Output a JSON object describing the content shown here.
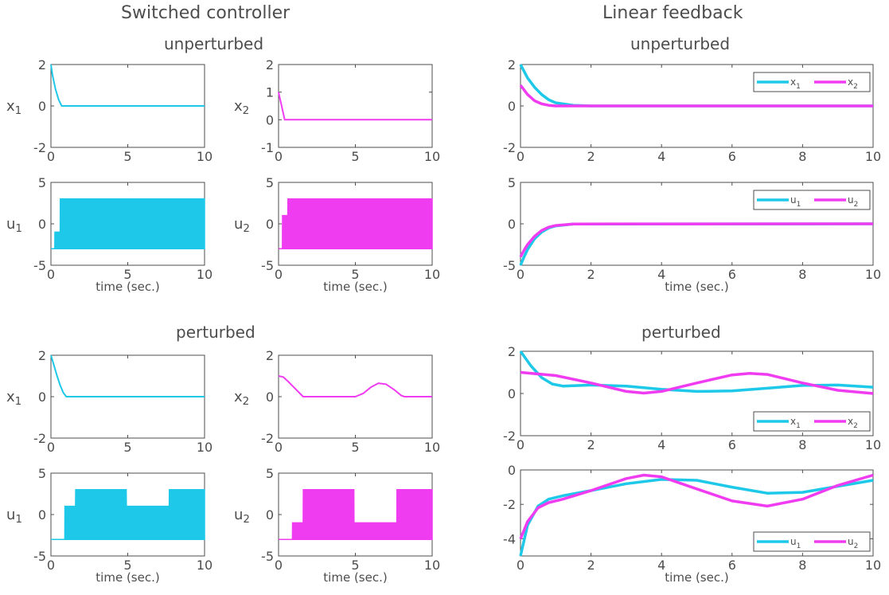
{
  "columns": {
    "left": "Switched controller",
    "right": "Linear feedback"
  },
  "rows": {
    "top": "unperturbed",
    "bottom": "perturbed"
  },
  "xlabel": "time (sec.)",
  "colors": {
    "cyan": "#1ec8e8",
    "magenta": "#f03cf0",
    "axis": "#4d4d4d"
  },
  "chart_data": [
    {
      "id": "sw-unp-x1",
      "type": "line",
      "ylabel": "x1",
      "xlim": [
        0,
        10
      ],
      "ylim": [
        -2,
        2
      ],
      "xticks": [
        0,
        5,
        10
      ],
      "yticks": [
        -2,
        0,
        2
      ],
      "series": [
        {
          "color": "#1ec8e8",
          "x": [
            0,
            0.1,
            0.3,
            0.5,
            0.7,
            10
          ],
          "y": [
            2,
            1.5,
            0.8,
            0.3,
            0,
            0
          ]
        }
      ]
    },
    {
      "id": "sw-unp-x2",
      "type": "line",
      "ylabel": "x2",
      "xlim": [
        0,
        10
      ],
      "ylim": [
        -1,
        2
      ],
      "xticks": [
        0,
        5,
        10
      ],
      "yticks": [
        -1,
        0,
        1,
        2
      ],
      "series": [
        {
          "color": "#f03cf0",
          "x": [
            0,
            0.1,
            0.3,
            0.4,
            10
          ],
          "y": [
            1,
            0.75,
            0.25,
            0,
            0
          ]
        }
      ]
    },
    {
      "id": "sw-unp-u1",
      "type": "area",
      "ylabel": "u1",
      "xlabel": "time (sec.)",
      "xlim": [
        0,
        10
      ],
      "ylim": [
        -5,
        5
      ],
      "xticks": [
        0,
        5,
        10
      ],
      "yticks": [
        -5,
        0,
        5
      ],
      "series": [
        {
          "color": "#1ec8e8",
          "x": [
            0,
            0.25,
            0.26,
            0.6,
            0.61,
            10
          ],
          "lower": [
            -3,
            -3,
            -3,
            -3,
            -3,
            -3
          ],
          "upper": [
            -3,
            -3,
            -1,
            -1,
            3,
            3
          ]
        }
      ]
    },
    {
      "id": "sw-unp-u2",
      "type": "area",
      "ylabel": "u2",
      "xlabel": "time (sec.)",
      "xlim": [
        0,
        10
      ],
      "ylim": [
        -5,
        5
      ],
      "xticks": [
        0,
        5,
        10
      ],
      "yticks": [
        -5,
        0,
        5
      ],
      "series": [
        {
          "color": "#f03cf0",
          "x": [
            0,
            0.25,
            0.26,
            0.6,
            0.61,
            10
          ],
          "lower": [
            -3,
            -3,
            -3,
            -3,
            -3,
            -3
          ],
          "upper": [
            -3,
            -3,
            1,
            1,
            3,
            3
          ]
        }
      ]
    },
    {
      "id": "lf-unp-x",
      "type": "line",
      "xlim": [
        0,
        10
      ],
      "ylim": [
        -2,
        2
      ],
      "xticks": [
        0,
        2,
        4,
        6,
        8,
        10
      ],
      "yticks": [
        -2,
        0,
        2
      ],
      "legend": "top-right",
      "series": [
        {
          "name": "x1",
          "color": "#1ec8e8",
          "x": [
            0,
            0.2,
            0.4,
            0.6,
            0.8,
            1.0,
            1.5,
            2,
            10
          ],
          "y": [
            2,
            1.35,
            0.9,
            0.55,
            0.3,
            0.15,
            0.03,
            0,
            0
          ]
        },
        {
          "name": "x2",
          "color": "#f03cf0",
          "x": [
            0,
            0.2,
            0.4,
            0.6,
            0.8,
            1.0,
            1.5,
            10
          ],
          "y": [
            1,
            0.55,
            0.25,
            0.1,
            0.03,
            0,
            0,
            0
          ]
        }
      ]
    },
    {
      "id": "lf-unp-u",
      "type": "line",
      "xlabel": "time (sec.)",
      "xlim": [
        0,
        10
      ],
      "ylim": [
        -5,
        5
      ],
      "xticks": [
        0,
        2,
        4,
        6,
        8,
        10
      ],
      "yticks": [
        -5,
        0,
        5
      ],
      "legend": "top-right",
      "series": [
        {
          "name": "u1",
          "color": "#1ec8e8",
          "x": [
            0,
            0.1,
            0.2,
            0.4,
            0.6,
            0.8,
            1.0,
            1.5,
            10
          ],
          "y": [
            -5,
            -4,
            -3.1,
            -1.8,
            -1.0,
            -0.5,
            -0.25,
            -0.03,
            0
          ]
        },
        {
          "name": "u2",
          "color": "#f03cf0",
          "x": [
            0,
            0.1,
            0.2,
            0.4,
            0.6,
            0.8,
            1.0,
            1.5,
            10
          ],
          "y": [
            -4,
            -3.2,
            -2.5,
            -1.5,
            -0.8,
            -0.4,
            -0.2,
            -0.02,
            0
          ]
        }
      ]
    },
    {
      "id": "sw-per-x1",
      "type": "line",
      "ylabel": "x1",
      "xlim": [
        0,
        10
      ],
      "ylim": [
        -2,
        2
      ],
      "xticks": [
        0,
        5,
        10
      ],
      "yticks": [
        -2,
        0,
        2
      ],
      "series": [
        {
          "color": "#1ec8e8",
          "x": [
            0,
            0.2,
            0.4,
            0.6,
            0.8,
            1.0,
            10
          ],
          "y": [
            2,
            1.5,
            1.0,
            0.55,
            0.2,
            0,
            0
          ]
        }
      ]
    },
    {
      "id": "sw-per-x2",
      "type": "line",
      "ylabel": "x2",
      "xlim": [
        0,
        10
      ],
      "ylim": [
        -2,
        2
      ],
      "xticks": [
        0,
        5,
        10
      ],
      "yticks": [
        -2,
        0,
        2
      ],
      "series": [
        {
          "color": "#f03cf0",
          "x": [
            0,
            0.3,
            0.6,
            1.0,
            1.6,
            2.0,
            3.0,
            5.0,
            5.5,
            6.0,
            6.5,
            7.0,
            7.5,
            8.0,
            8.2,
            10
          ],
          "y": [
            1,
            0.95,
            0.75,
            0.45,
            0,
            0,
            0,
            0,
            0.15,
            0.45,
            0.65,
            0.6,
            0.35,
            0.05,
            0,
            0
          ]
        }
      ]
    },
    {
      "id": "sw-per-u1",
      "type": "area",
      "ylabel": "u1",
      "xlabel": "time (sec.)",
      "xlim": [
        0,
        10
      ],
      "ylim": [
        -5,
        5
      ],
      "xticks": [
        0,
        5,
        10
      ],
      "yticks": [
        -5,
        0,
        5
      ],
      "series": [
        {
          "color": "#1ec8e8",
          "x": [
            0,
            0.9,
            0.91,
            1.6,
            1.61,
            4.9,
            4.91,
            7.7,
            7.71,
            10
          ],
          "lower": [
            -3,
            -3,
            -3,
            -3,
            -3,
            -3,
            -3,
            -3,
            -3,
            -3
          ],
          "upper": [
            -3,
            -3,
            1,
            1,
            3,
            3,
            1,
            1,
            3,
            3
          ]
        }
      ]
    },
    {
      "id": "sw-per-u2",
      "type": "area",
      "ylabel": "u2",
      "xlabel": "time (sec.)",
      "xlim": [
        0,
        10
      ],
      "ylim": [
        -5,
        5
      ],
      "xticks": [
        0,
        5,
        10
      ],
      "yticks": [
        -5,
        0,
        5
      ],
      "series": [
        {
          "color": "#f03cf0",
          "x": [
            0,
            0.9,
            0.91,
            1.6,
            1.61,
            4.9,
            4.91,
            7.7,
            7.71,
            10
          ],
          "lower": [
            -3,
            -3,
            -3,
            -3,
            -3,
            -3,
            -3,
            -3,
            -3,
            -3
          ],
          "upper": [
            -3,
            -3,
            -1,
            -1,
            3,
            3,
            -1,
            -1,
            3,
            3
          ]
        }
      ]
    },
    {
      "id": "lf-per-x",
      "type": "line",
      "xlim": [
        0,
        10
      ],
      "ylim": [
        -2,
        2
      ],
      "xticks": [
        0,
        2,
        4,
        6,
        8,
        10
      ],
      "yticks": [
        -2,
        0,
        2
      ],
      "legend": "bottom-right",
      "series": [
        {
          "name": "x1",
          "color": "#1ec8e8",
          "x": [
            0,
            0.3,
            0.6,
            0.9,
            1.2,
            2,
            3,
            4,
            5,
            6,
            7,
            8,
            9,
            10
          ],
          "y": [
            2,
            1.3,
            0.75,
            0.45,
            0.35,
            0.4,
            0.35,
            0.2,
            0.1,
            0.12,
            0.25,
            0.38,
            0.4,
            0.3
          ]
        },
        {
          "name": "x2",
          "color": "#f03cf0",
          "x": [
            0,
            1,
            2,
            3,
            3.5,
            4,
            5,
            6,
            6.5,
            7,
            8,
            9,
            10
          ],
          "y": [
            1,
            0.85,
            0.5,
            0.1,
            0.02,
            0.1,
            0.5,
            0.88,
            0.95,
            0.9,
            0.5,
            0.15,
            0
          ]
        }
      ]
    },
    {
      "id": "lf-per-u",
      "type": "line",
      "xlabel": "time (sec.)",
      "xlim": [
        0,
        10
      ],
      "ylim": [
        -5,
        0
      ],
      "xticks": [
        0,
        2,
        4,
        6,
        8,
        10
      ],
      "yticks": [
        -4,
        -2,
        0
      ],
      "legend": "bottom-right",
      "series": [
        {
          "name": "u1",
          "color": "#1ec8e8",
          "x": [
            0,
            0.2,
            0.5,
            0.8,
            1.2,
            2,
            3,
            4,
            5,
            6,
            7,
            8,
            9,
            10
          ],
          "y": [
            -5,
            -3.2,
            -2.1,
            -1.7,
            -1.5,
            -1.2,
            -0.8,
            -0.55,
            -0.6,
            -1.0,
            -1.35,
            -1.3,
            -0.95,
            -0.6
          ]
        },
        {
          "name": "u2",
          "color": "#f03cf0",
          "x": [
            0,
            0.2,
            0.5,
            0.8,
            1.2,
            2,
            3,
            3.5,
            4,
            5,
            6,
            7,
            8,
            9,
            10
          ],
          "y": [
            -4,
            -3.0,
            -2.2,
            -1.9,
            -1.7,
            -1.2,
            -0.5,
            -0.3,
            -0.4,
            -1.1,
            -1.8,
            -2.1,
            -1.7,
            -0.9,
            -0.3
          ]
        }
      ]
    }
  ]
}
